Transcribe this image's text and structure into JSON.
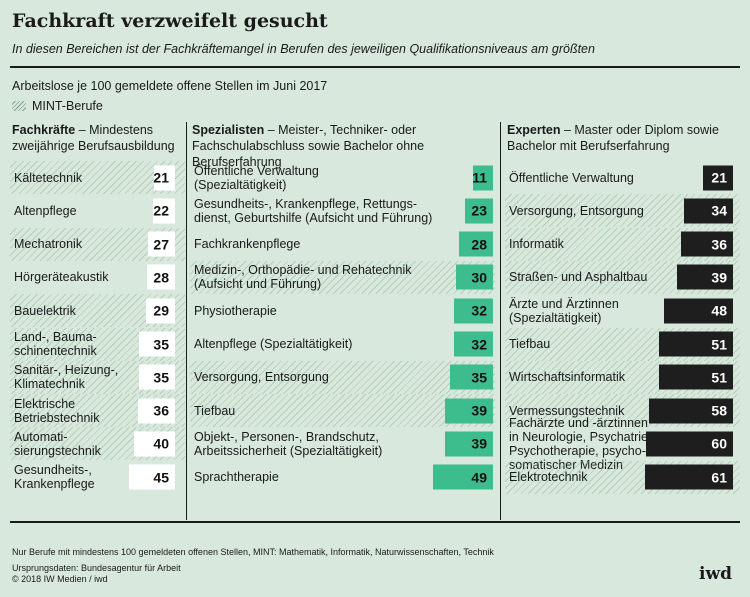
{
  "header": {
    "title": "Fachkraft verzweifelt gesucht",
    "subtitle": "In diesen Bereichen ist der Fachkräftemangel in Berufen des jeweiligen Qualifikationsniveaus am größten",
    "measure": "Arbeitslose je 100 gemeldete offene Stellen im Juni 2017",
    "legend_label": "MINT-Berufe"
  },
  "colors": {
    "background": "#d8e8dc",
    "fachkraefte": "#ffffff",
    "spezialisten": "#3dbd8e",
    "experten": "#1e1e1e",
    "mint_hatch": "#96b9a0"
  },
  "chart_data": [
    {
      "type": "bar",
      "group_title": "Fachkräfte",
      "group_desc": " – Mindestens zweijährige Berufsausbildung",
      "xlim": [
        0,
        61
      ],
      "categories": [
        "Kältetechnik",
        "Altenpflege",
        "Mechatronik",
        "Hörgeräteakustik",
        "Bauelektrik",
        "Land-, Baumaschinentechnik",
        "Sanitär-, Heizung-, Klimatechnik",
        "Elektrische Betriebstechnik",
        "Automatisierungstechnik",
        "Gesundheits-, Krankenpflege"
      ],
      "labels": [
        "Kältetechnik",
        "Altenpflege",
        "Mechatronik",
        "Hörgeräteakustik",
        "Bauelektrik",
        "Land-, Bauma-\nschinentechnik",
        "Sanitär-, Heizung-,\nKlimatechnik",
        "Elektrische\nBetriebstechnik",
        "Automati-\nsierungstechnik",
        "Gesundheits-,\nKrankenpflege"
      ],
      "values": [
        21,
        22,
        27,
        28,
        29,
        35,
        35,
        36,
        40,
        45
      ],
      "mint": [
        true,
        false,
        true,
        false,
        true,
        true,
        true,
        true,
        true,
        false
      ]
    },
    {
      "type": "bar",
      "group_title": "Spezialisten",
      "group_desc": " – Meister-, Techniker- oder Fachschulabschluss sowie Bachelor ohne Berufserfahrung",
      "xlim": [
        0,
        49
      ],
      "categories": [
        "Öffentliche Verwaltung (Spezialtätigkeit)",
        "Gesundheits-, Krankenpflege, Rettungsdienst, Geburtshilfe (Aufsicht und Führung)",
        "Fachkrankenpflege",
        "Medizin-, Orthopädie- und Rehatechnik (Aufsicht und Führung)",
        "Physiotherapie",
        "Altenpflege (Spezialtätigkeit)",
        "Versorgung, Entsorgung",
        "Tiefbau",
        "Objekt-, Personen-, Brandschutz, Arbeitssicherheit (Spezialtätigkeit)",
        "Sprachtherapie"
      ],
      "labels": [
        "Öffentliche Verwaltung\n(Spezialtätigkeit)",
        "Gesundheits-, Krankenpflege, Rettungs-\ndienst, Geburtshilfe (Aufsicht und Führung)",
        "Fachkrankenpflege",
        "Medizin-, Orthopädie- und Rehatechnik\n(Aufsicht und Führung)",
        "Physiotherapie",
        "Altenpflege (Spezialtätigkeit)",
        "Versorgung, Entsorgung",
        "Tiefbau",
        "Objekt-, Personen-, Brandschutz,\nArbeitssicherheit (Spezialtätigkeit)",
        "Sprachtherapie"
      ],
      "values": [
        11,
        23,
        28,
        30,
        32,
        32,
        35,
        39,
        39,
        49
      ],
      "mint": [
        false,
        false,
        false,
        true,
        false,
        false,
        true,
        true,
        false,
        false
      ]
    },
    {
      "type": "bar",
      "group_title": "Experten",
      "group_desc": " – Master oder Diplom sowie Bachelor mit Berufserfahrung",
      "xlim": [
        0,
        61
      ],
      "categories": [
        "Öffentliche Verwaltung",
        "Versorgung, Entsorgung",
        "Informatik",
        "Straßen- und Asphaltbau",
        "Ärzte und Ärztinnen (Spezialtätigkeit)",
        "Tiefbau",
        "Wirtschaftsinformatik",
        "Vermessungstechnik",
        "Fachärzte und -ärztinnen in Neurologie, Psychatrie, Psychotherapie, psychosomatischer Medizin",
        "Elektrotechnik"
      ],
      "labels": [
        "Öffentliche Verwaltung",
        "Versorgung, Entsorgung",
        "Informatik",
        "Straßen- und Asphaltbau",
        "Ärzte und Ärztinnen\n(Spezialtätigkeit)",
        "Tiefbau",
        "Wirtschaftsinformatik",
        "Vermessungstechnik",
        "Fachärzte und -ärztinnen\nin Neurologie, Psychatrie,\nPsychotherapie, psycho-\nsomatischer Medizin",
        "Elektrotechnik"
      ],
      "values": [
        21,
        34,
        36,
        39,
        48,
        51,
        51,
        58,
        60,
        61
      ],
      "mint": [
        false,
        true,
        true,
        true,
        false,
        true,
        true,
        true,
        false,
        true
      ]
    }
  ],
  "footer": {
    "footnote": "Nur Berufe mit mindestens 100 gemeldeten offenen Stellen, MINT: Mathematik, Informatik, Naturwissenschaften, Technik",
    "source_line1": "Ursprungsdaten: Bundesagentur für Arbeit",
    "source_line2": "© 2018 IW Medien / iwd",
    "logo": "iwd"
  }
}
